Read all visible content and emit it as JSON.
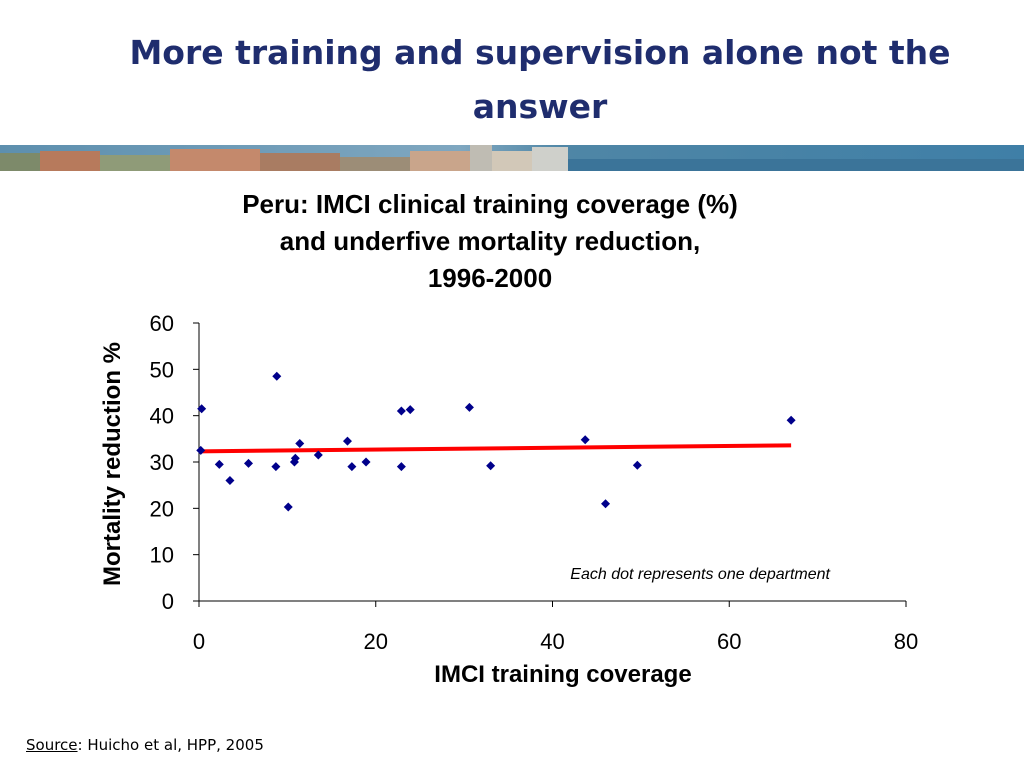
{
  "slide": {
    "title": "More training and supervision alone not the answer",
    "source_label": "Source",
    "source_text": ": Huicho et al, HPP, 2005"
  },
  "colors": {
    "title": "#1f2d6e",
    "points": "#00008b",
    "trendline": "#ff0000"
  },
  "chart_data": {
    "type": "scatter",
    "title_lines": [
      "Peru: IMCI clinical training coverage (%)",
      "and underfive mortality reduction,",
      "1996-2000"
    ],
    "xlabel": "IMCI training coverage",
    "ylabel": "Mortality reduction %",
    "xlim": [
      0,
      80
    ],
    "ylim": [
      0,
      60
    ],
    "xticks": [
      0,
      20,
      40,
      60,
      80
    ],
    "yticks": [
      0,
      10,
      20,
      30,
      40,
      50,
      60
    ],
    "annotation": "Each dot represents one department",
    "grid": false,
    "series": [
      {
        "points": [
          [
            0.2,
            32.5
          ],
          [
            0.3,
            41.5
          ],
          [
            2.3,
            29.5
          ],
          [
            3.5,
            26.0
          ],
          [
            5.6,
            29.7
          ],
          [
            8.7,
            29.0
          ],
          [
            8.8,
            48.5
          ],
          [
            10.1,
            20.3
          ],
          [
            10.8,
            30.0
          ],
          [
            10.9,
            30.8
          ],
          [
            11.4,
            34.0
          ],
          [
            13.5,
            31.5
          ],
          [
            16.8,
            34.5
          ],
          [
            17.3,
            29.0
          ],
          [
            18.9,
            30.0
          ],
          [
            22.9,
            29.0
          ],
          [
            22.9,
            41.0
          ],
          [
            23.9,
            41.3
          ],
          [
            30.6,
            41.8
          ],
          [
            33.0,
            29.2
          ],
          [
            43.7,
            34.8
          ],
          [
            46.0,
            21.0
          ],
          [
            49.6,
            29.3
          ],
          [
            67.0,
            39.0
          ]
        ]
      }
    ],
    "trendline": {
      "x": [
        0,
        67
      ],
      "y": [
        32.3,
        33.6
      ]
    }
  }
}
